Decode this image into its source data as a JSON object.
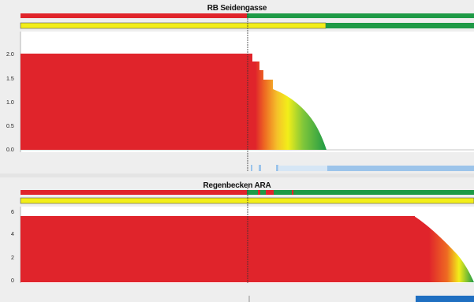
{
  "colors": {
    "red": "#e0242b",
    "green": "#1e9a46",
    "yellow": "#f2ee19",
    "orange": "#ee6a22",
    "axis": "#8a8a8a",
    "background": "#eeeeee",
    "plot_bg": "#ffffff",
    "timeline_light": "#d6e6f5",
    "timeline_dark": "#9cc4ea",
    "blue_block": "#1f6fc1"
  },
  "panels": [
    {
      "title": "RB Seidengasse",
      "status_bar_red_fraction": 0.515,
      "status_bar_yellow_fraction": 0.68,
      "y_ticks": [
        "2.0",
        "1.5",
        "1.0",
        "0.5",
        "0.0"
      ]
    },
    {
      "title": "Regenbecken ARA",
      "status_bar_red_fraction": 0.515,
      "status_bar_yellow_fraction": 1.0,
      "y_ticks": [
        "6",
        "4",
        "2",
        "0"
      ]
    }
  ]
}
